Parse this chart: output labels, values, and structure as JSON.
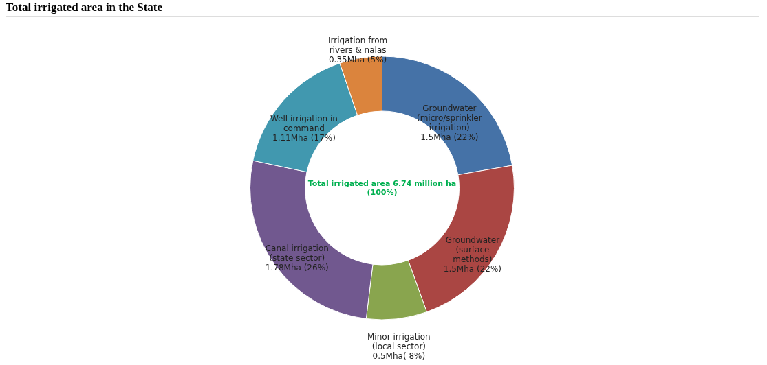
{
  "chart_data": {
    "type": "donut",
    "title": "Total irrigated area in the State",
    "categories": [
      "Groundwater\n(micro/sprinkler\nirrigation)",
      "Groundwater\n(surface\nmethods)",
      "Minor irrigation\n(local sector)",
      "Canal irrigation\n(state sector)",
      "Well irrigation in\ncommand",
      "Irrigation from\nrivers & nalas"
    ],
    "values": [
      1.5,
      1.5,
      0.5,
      1.78,
      1.11,
      0.35
    ],
    "value_labels": [
      "1.5Mha (22%)",
      "1.5Mha (22%)",
      "0.5Mha( 8%)",
      "1.78Mha (26%)",
      "1.11Mha (17%)",
      "0.35Mha  (5%)"
    ],
    "colors": [
      "#4572a7",
      "#aa4643",
      "#89a54e",
      "#71588f",
      "#4198af",
      "#db843d"
    ],
    "annotations": [
      "Total irrigated area 6.74 million ha\n(100%)"
    ],
    "legend": false
  }
}
